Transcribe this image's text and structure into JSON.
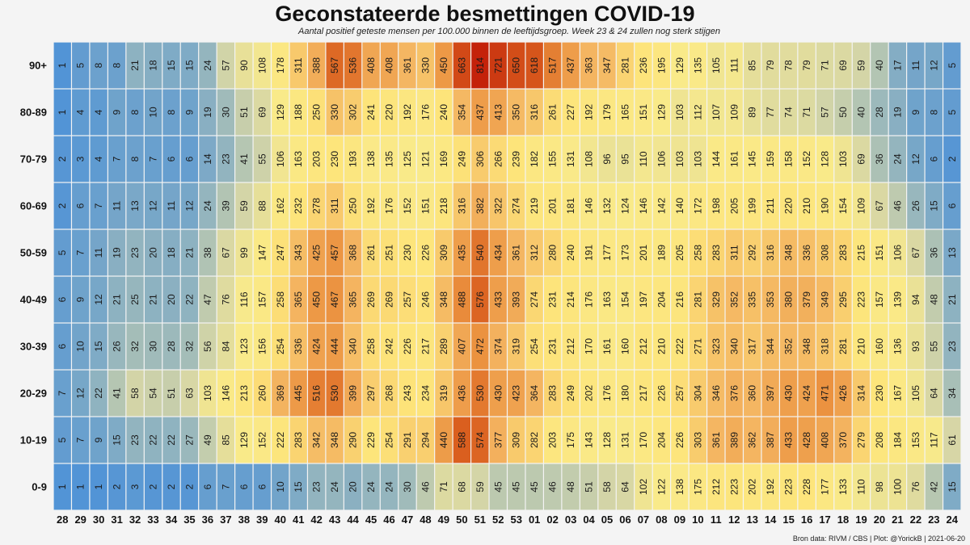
{
  "chart_data": {
    "type": "heatmap",
    "title": "Geconstateerde besmettingen COVID-19",
    "subtitle": "Aantal positief geteste mensen per 100.000 binnen de leeftijdsgroep. Week 23 & 24 zullen nog sterk stijgen",
    "source": "Bron data: RIVM / CBS  | Plot: @YorickB |  2021-06-20",
    "x_categories": [
      "28",
      "29",
      "30",
      "31",
      "32",
      "33",
      "34",
      "35",
      "36",
      "37",
      "38",
      "39",
      "40",
      "41",
      "42",
      "43",
      "44",
      "45",
      "46",
      "47",
      "48",
      "49",
      "50",
      "51",
      "52",
      "53",
      "01",
      "02",
      "03",
      "04",
      "05",
      "06",
      "07",
      "08",
      "09",
      "10",
      "11",
      "12",
      "13",
      "14",
      "15",
      "16",
      "17",
      "18",
      "19",
      "20",
      "21",
      "22",
      "23",
      "24"
    ],
    "y_categories": [
      "90+",
      "80-89",
      "70-79",
      "60-69",
      "50-59",
      "40-49",
      "30-39",
      "20-29",
      "10-19",
      "0-9"
    ],
    "values": [
      [
        1,
        5,
        8,
        8,
        21,
        18,
        15,
        15,
        24,
        57,
        90,
        108,
        178,
        311,
        388,
        567,
        536,
        408,
        408,
        361,
        330,
        450,
        663,
        814,
        721,
        650,
        618,
        517,
        437,
        363,
        347,
        281,
        236,
        195,
        129,
        135,
        105,
        111,
        85,
        79,
        78,
        79,
        71,
        69,
        59,
        40,
        17,
        11,
        12,
        5
      ],
      [
        1,
        4,
        4,
        9,
        8,
        10,
        8,
        9,
        19,
        30,
        51,
        69,
        129,
        188,
        250,
        330,
        302,
        241,
        220,
        192,
        176,
        240,
        354,
        437,
        413,
        350,
        316,
        261,
        227,
        192,
        179,
        165,
        151,
        129,
        103,
        112,
        107,
        109,
        89,
        77,
        74,
        71,
        57,
        50,
        40,
        28,
        19,
        9,
        8,
        5
      ],
      [
        2,
        3,
        4,
        7,
        8,
        7,
        6,
        6,
        14,
        23,
        41,
        55,
        106,
        163,
        203,
        230,
        193,
        138,
        135,
        125,
        121,
        169,
        249,
        306,
        266,
        239,
        182,
        155,
        131,
        108,
        96,
        95,
        110,
        106,
        103,
        103,
        144,
        161,
        145,
        159,
        158,
        152,
        128,
        103,
        69,
        36,
        24,
        12,
        6,
        2
      ],
      [
        2,
        6,
        7,
        11,
        13,
        12,
        11,
        12,
        24,
        39,
        59,
        88,
        162,
        232,
        278,
        311,
        250,
        192,
        176,
        152,
        151,
        218,
        316,
        382,
        322,
        274,
        219,
        201,
        181,
        146,
        132,
        124,
        146,
        142,
        140,
        172,
        198,
        205,
        199,
        211,
        220,
        210,
        190,
        154,
        109,
        67,
        46,
        26,
        15,
        6
      ],
      [
        5,
        7,
        11,
        19,
        23,
        20,
        18,
        21,
        38,
        67,
        99,
        147,
        247,
        343,
        425,
        457,
        368,
        261,
        251,
        230,
        226,
        309,
        435,
        540,
        434,
        361,
        312,
        280,
        240,
        191,
        177,
        173,
        201,
        189,
        205,
        258,
        283,
        311,
        292,
        316,
        348,
        336,
        308,
        283,
        215,
        151,
        106,
        67,
        36,
        13
      ],
      [
        6,
        9,
        12,
        21,
        25,
        21,
        20,
        22,
        47,
        76,
        116,
        157,
        258,
        365,
        450,
        467,
        365,
        269,
        269,
        257,
        246,
        348,
        488,
        576,
        433,
        393,
        274,
        231,
        214,
        176,
        163,
        154,
        197,
        204,
        216,
        281,
        329,
        352,
        335,
        353,
        380,
        379,
        349,
        295,
        223,
        157,
        139,
        94,
        48,
        21
      ],
      [
        6,
        10,
        15,
        26,
        32,
        30,
        28,
        32,
        56,
        84,
        123,
        156,
        254,
        336,
        424,
        444,
        340,
        258,
        242,
        226,
        217,
        289,
        407,
        472,
        374,
        319,
        254,
        231,
        212,
        170,
        161,
        160,
        212,
        210,
        222,
        271,
        323,
        340,
        317,
        344,
        352,
        348,
        318,
        281,
        210,
        160,
        136,
        93,
        55,
        23
      ],
      [
        7,
        12,
        22,
        41,
        58,
        54,
        51,
        63,
        103,
        146,
        213,
        260,
        369,
        445,
        516,
        530,
        399,
        297,
        268,
        243,
        234,
        319,
        436,
        530,
        430,
        423,
        364,
        283,
        249,
        202,
        176,
        180,
        217,
        226,
        257,
        304,
        346,
        376,
        360,
        397,
        430,
        424,
        471,
        426,
        314,
        230,
        167,
        105,
        64,
        34
      ],
      [
        5,
        7,
        9,
        15,
        23,
        22,
        22,
        27,
        49,
        85,
        129,
        152,
        222,
        283,
        342,
        348,
        290,
        229,
        254,
        291,
        294,
        440,
        588,
        574,
        377,
        309,
        282,
        203,
        175,
        143,
        128,
        131,
        170,
        204,
        226,
        303,
        361,
        389,
        362,
        387,
        433,
        428,
        408,
        370,
        279,
        208,
        184,
        153,
        117,
        61
      ],
      [
        1,
        1,
        1,
        2,
        3,
        2,
        2,
        2,
        6,
        7,
        6,
        6,
        10,
        15,
        23,
        24,
        20,
        24,
        24,
        30,
        46,
        71,
        68,
        59,
        45,
        45,
        45,
        46,
        48,
        51,
        58,
        64,
        102,
        122,
        138,
        175,
        212,
        223,
        202,
        192,
        223,
        228,
        177,
        133,
        110,
        98,
        100,
        76,
        42,
        15
      ]
    ],
    "color_scale": [
      "#4a90d9",
      "#e9e48a",
      "#fde47a",
      "#f0a657",
      "#cc2b0a"
    ]
  }
}
